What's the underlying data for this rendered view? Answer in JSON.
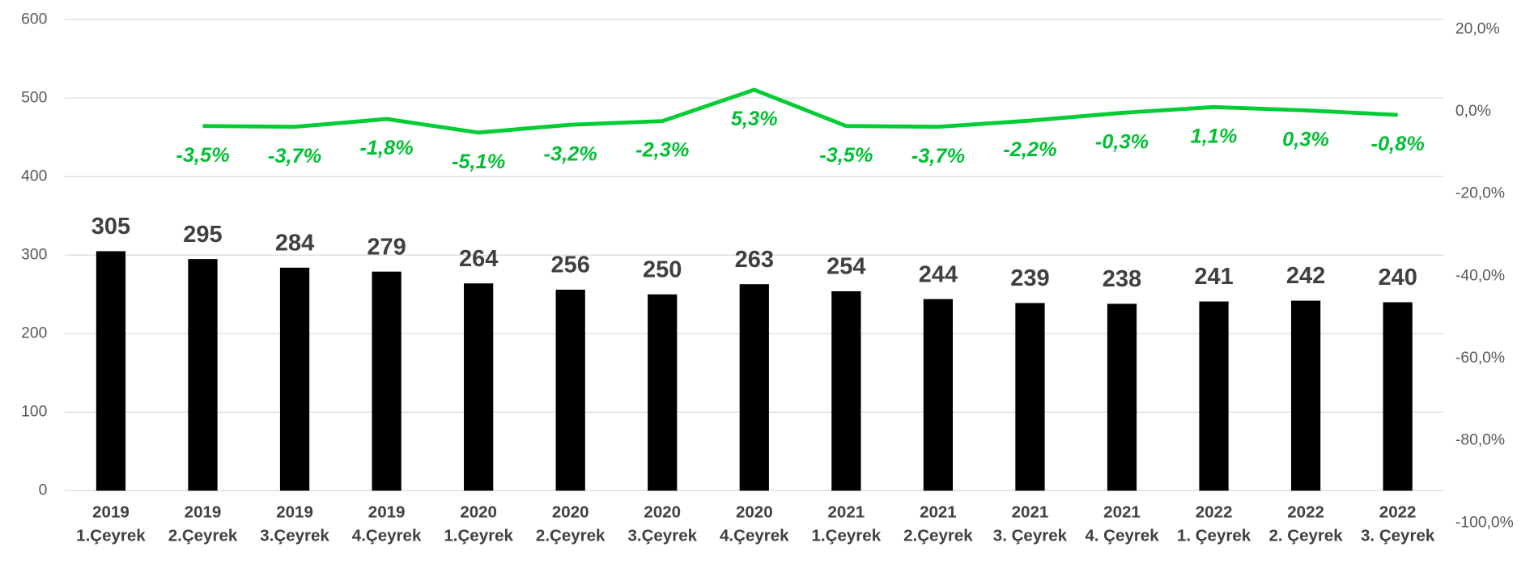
{
  "chart_data": {
    "type": "bar_line",
    "categories": [
      [
        "2019",
        "1.Çeyrek"
      ],
      [
        "2019",
        "2.Çeyrek"
      ],
      [
        "2019",
        "3.Çeyrek"
      ],
      [
        "2019",
        "4.Çeyrek"
      ],
      [
        "2020",
        "1.Çeyrek"
      ],
      [
        "2020",
        "2.Çeyrek"
      ],
      [
        "2020",
        "3.Çeyrek"
      ],
      [
        "2020",
        "4.Çeyrek"
      ],
      [
        "2021",
        "1.Çeyrek"
      ],
      [
        "2021",
        "2.Çeyrek"
      ],
      [
        "2021",
        "3. Çeyrek"
      ],
      [
        "2021",
        "4. Çeyrek"
      ],
      [
        "2022",
        "1. Çeyrek"
      ],
      [
        "2022",
        "2. Çeyrek"
      ],
      [
        "2022",
        "3. Çeyrek"
      ]
    ],
    "series": [
      {
        "type": "bar",
        "color": "#000000",
        "values": [
          305,
          295,
          284,
          279,
          264,
          256,
          250,
          263,
          254,
          244,
          239,
          238,
          241,
          242,
          240
        ]
      },
      {
        "type": "line",
        "axis": "y2",
        "color": "#00cc33",
        "values": [
          null,
          -3.5,
          -3.7,
          -1.8,
          -5.1,
          -3.2,
          -2.3,
          5.3,
          -3.5,
          -3.7,
          -2.2,
          -0.3,
          1.1,
          0.3,
          -0.8
        ],
        "value_labels": [
          null,
          "-3,5%",
          "-3,7%",
          "-1,8%",
          "-5,1%",
          "-3,2%",
          "-2,3%",
          "5,3%",
          "-3,5%",
          "-3,7%",
          "-2,2%",
          "-0,3%",
          "1,1%",
          "0,3%",
          "-0,8%"
        ]
      }
    ],
    "ylim": [
      0,
      600
    ],
    "yticks": [
      0,
      100,
      200,
      300,
      400,
      500,
      600
    ],
    "y2lim": [
      -100,
      20
    ],
    "y2ticks": [
      {
        "value": -100,
        "label": "-100,0%"
      },
      {
        "value": -80,
        "label": "-80,0%"
      },
      {
        "value": -60,
        "label": "-60,0%"
      },
      {
        "value": -40,
        "label": "-40,0%"
      },
      {
        "value": -20,
        "label": "-20,0%"
      },
      {
        "value": 0,
        "label": "0,0%"
      },
      {
        "value": 20,
        "label": "20,0%"
      }
    ],
    "grid": true
  }
}
